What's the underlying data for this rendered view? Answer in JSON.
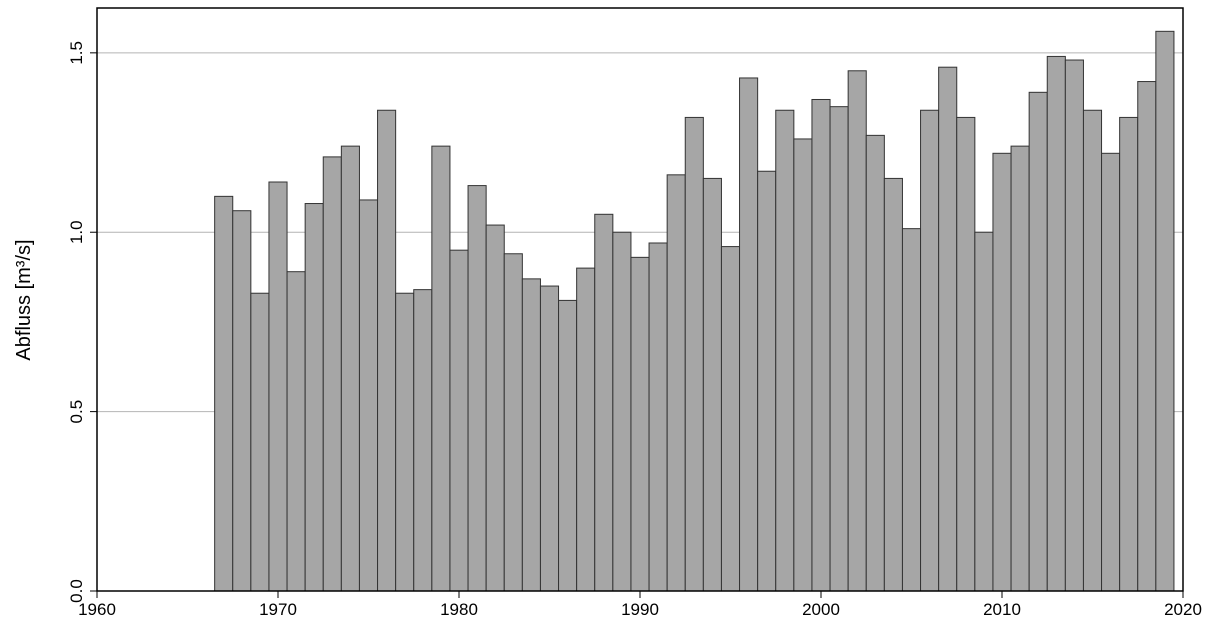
{
  "chart_data": {
    "type": "bar",
    "y_label": "Abfluss [m³/s]",
    "x": [
      1967,
      1968,
      1969,
      1970,
      1971,
      1972,
      1973,
      1974,
      1975,
      1976,
      1977,
      1978,
      1979,
      1980,
      1981,
      1982,
      1983,
      1984,
      1985,
      1986,
      1987,
      1988,
      1989,
      1990,
      1991,
      1992,
      1993,
      1994,
      1995,
      1996,
      1997,
      1998,
      1999,
      2000,
      2001,
      2002,
      2003,
      2004,
      2005,
      2006,
      2007,
      2008,
      2009,
      2010,
      2011,
      2012,
      2013,
      2014,
      2015,
      2016,
      2017,
      2018,
      2019
    ],
    "values": [
      1.1,
      1.06,
      0.83,
      1.14,
      0.89,
      1.08,
      1.21,
      1.24,
      1.09,
      1.34,
      0.83,
      0.84,
      1.24,
      0.95,
      1.13,
      1.02,
      0.94,
      0.87,
      0.85,
      0.81,
      0.9,
      1.05,
      1.0,
      0.93,
      0.97,
      1.16,
      1.32,
      1.15,
      0.96,
      1.43,
      1.17,
      1.34,
      1.26,
      1.37,
      1.35,
      1.45,
      1.27,
      1.15,
      1.01,
      1.34,
      1.46,
      1.32,
      1.0,
      1.22,
      1.24,
      1.39,
      1.49,
      1.48,
      1.34,
      1.22,
      1.32,
      1.42,
      1.56
    ],
    "color": "#a6a6a6",
    "xlim": [
      1960,
      2020
    ],
    "xticks": [
      1960,
      1970,
      1980,
      1990,
      2000,
      2010,
      2020
    ],
    "ylim": [
      0,
      1.625
    ],
    "yticks": [
      {
        "value": 0,
        "label": "0.0"
      },
      0.5,
      {
        "value": 1,
        "label": "1.0"
      },
      1.5
    ],
    "grid": true
  }
}
